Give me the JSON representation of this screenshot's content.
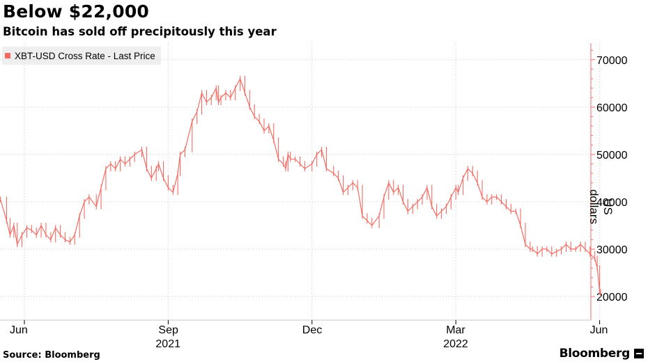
{
  "chart_data": {
    "type": "line",
    "title": "Below $22,000",
    "subtitle": "Bitcoin has sold off precipitously this year",
    "legend": [
      "XBT-USD Cross Rate - Last Price"
    ],
    "ylabel": "US dollars",
    "ylim": [
      15000,
      73500
    ],
    "yticks": [
      20000,
      30000,
      40000,
      50000,
      60000,
      70000
    ],
    "ytick_labels": [
      "20000",
      "30000",
      "40000",
      "50000",
      "60000",
      "70000"
    ],
    "xticks": [
      {
        "month": 0,
        "label": "Jun"
      },
      {
        "month": 3,
        "label": "Sep"
      },
      {
        "month": 6,
        "label": "Dec"
      },
      {
        "month": 9,
        "label": "Mar"
      },
      {
        "month": 12,
        "label": "Jun"
      }
    ],
    "year_labels": [
      {
        "month": 3,
        "label": "2021"
      },
      {
        "month": 9,
        "label": "2022"
      }
    ],
    "x_range_months": [
      -0.5,
      12.05
    ],
    "series": [
      {
        "name": "XBT-USD Cross Rate - Last Price",
        "color": "#f26b64",
        "x_months": [
          -0.5,
          -0.37,
          -0.3,
          -0.22,
          -0.15,
          -0.05,
          0.05,
          0.15,
          0.25,
          0.35,
          0.45,
          0.55,
          0.65,
          0.75,
          0.85,
          0.95,
          1.05,
          1.15,
          1.25,
          1.35,
          1.5,
          1.6,
          1.7,
          1.8,
          1.9,
          2.0,
          2.1,
          2.2,
          2.3,
          2.45,
          2.55,
          2.65,
          2.75,
          2.8,
          2.9,
          3.0,
          3.1,
          3.2,
          3.25,
          3.35,
          3.5,
          3.6,
          3.7,
          3.8,
          3.9,
          4.0,
          4.05,
          4.1,
          4.2,
          4.3,
          4.4,
          4.5,
          4.6,
          4.7,
          4.8,
          4.9,
          5.0,
          5.1,
          5.2,
          5.3,
          5.4,
          5.45,
          5.5,
          5.55,
          5.65,
          5.75,
          5.85,
          6.0,
          6.1,
          6.2,
          6.3,
          6.45,
          6.55,
          6.65,
          6.75,
          6.85,
          6.95,
          7.05,
          7.15,
          7.25,
          7.4,
          7.5,
          7.6,
          7.7,
          7.8,
          7.9,
          8.0,
          8.1,
          8.2,
          8.3,
          8.4,
          8.5,
          8.6,
          8.7,
          8.8,
          8.9,
          9.0,
          9.05,
          9.15,
          9.25,
          9.35,
          9.45,
          9.55,
          9.65,
          9.75,
          9.85,
          9.95,
          10.05,
          10.15,
          10.25,
          10.35,
          10.45,
          10.55,
          10.6,
          10.7,
          10.8,
          10.9,
          11.0,
          11.1,
          11.2,
          11.3,
          11.4,
          11.5,
          11.6,
          11.7,
          11.8,
          11.9,
          11.95,
          12.0,
          12.02
        ],
        "values": [
          40500,
          36000,
          33000,
          35000,
          31000,
          33000,
          34500,
          34000,
          33000,
          35000,
          33000,
          32000,
          34500,
          33000,
          32000,
          31500,
          33000,
          37000,
          40000,
          41000,
          39000,
          43000,
          47000,
          48000,
          47000,
          49000,
          48000,
          49000,
          50000,
          51000,
          47000,
          45000,
          47000,
          48000,
          45000,
          43000,
          42000,
          46000,
          50000,
          51000,
          57000,
          59000,
          63000,
          61000,
          62000,
          64000,
          61000,
          62000,
          63000,
          62000,
          64000,
          66000,
          63000,
          60000,
          58000,
          57000,
          55000,
          56000,
          53000,
          49000,
          48000,
          47000,
          50000,
          49000,
          49000,
          48000,
          47000,
          48000,
          50000,
          51000,
          47000,
          46000,
          45000,
          42000,
          43000,
          44000,
          43000,
          37000,
          36000,
          35000,
          37000,
          41000,
          44000,
          42000,
          43000,
          40000,
          38000,
          39000,
          40000,
          41000,
          43000,
          39000,
          37000,
          38000,
          39000,
          41000,
          43000,
          42000,
          45000,
          47000,
          46000,
          44000,
          41000,
          40000,
          41000,
          41000,
          40000,
          39000,
          38000,
          38000,
          35000,
          31000,
          30000,
          30000,
          29000,
          30000,
          30000,
          29000,
          29500,
          30000,
          31000,
          30000,
          30000,
          31000,
          30000,
          29000,
          28000,
          26000,
          21000,
          20500
        ]
      }
    ]
  },
  "footer": {
    "source_label": "Source: Bloomberg",
    "brand": "Bloomberg"
  }
}
